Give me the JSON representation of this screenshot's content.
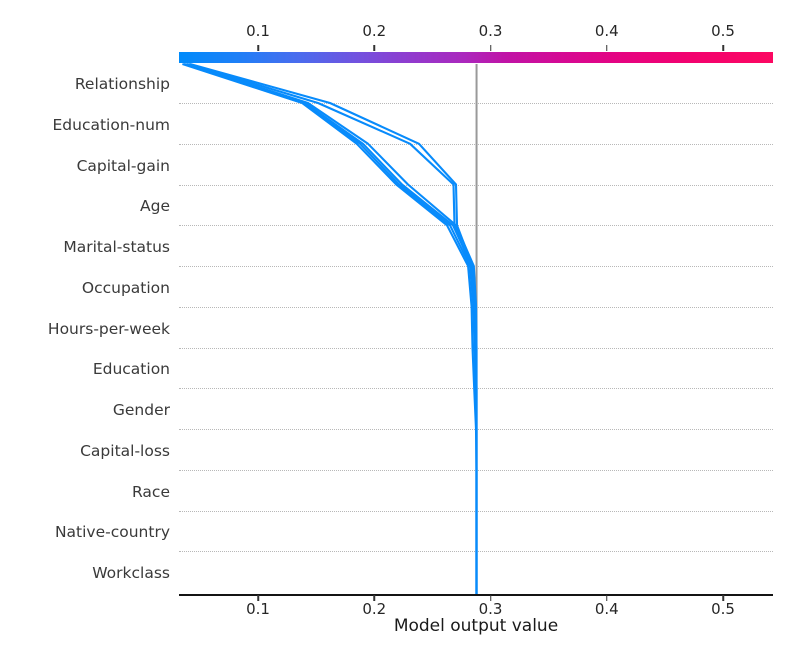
{
  "chart_data": {
    "type": "line",
    "subtype": "shap-decision-plot",
    "title": "",
    "xlabel": "Model output value",
    "ylabel": "",
    "x_range": [
      0.032,
      0.543
    ],
    "x_tick_values": [
      0.1,
      0.2,
      0.3,
      0.4,
      0.5
    ],
    "x_tick_labels": [
      "0.1",
      "0.2",
      "0.3",
      "0.4",
      "0.5"
    ],
    "top_axis_tick_labels": [
      "0.1",
      "0.2",
      "0.3",
      "0.4",
      "0.5"
    ],
    "grid": "horizontal-dotted",
    "base_value": 0.288,
    "features_top_to_bottom": [
      "Relationship",
      "Education-num",
      "Capital-gain",
      "Age",
      "Marital-status",
      "Occupation",
      "Hours-per-week",
      "Education",
      "Gender",
      "Capital-loss",
      "Race",
      "Native-country",
      "Workclass"
    ],
    "series_note": "values are model-output positions at each row boundary, listed top (final prediction) to bottom (base value)",
    "series": [
      {
        "name": "observation-1",
        "values": [
          0.035,
          0.138,
          0.185,
          0.219,
          0.2626,
          0.2807,
          0.2837,
          0.2845,
          0.286,
          0.2875,
          0.288,
          0.288,
          0.288,
          0.288
        ]
      },
      {
        "name": "observation-2",
        "values": [
          0.0362,
          0.1387,
          0.1877,
          0.2213,
          0.2652,
          0.2824,
          0.2853,
          0.2862,
          0.2872,
          0.288,
          0.288,
          0.288,
          0.288,
          0.288
        ]
      },
      {
        "name": "observation-3",
        "values": [
          0.0375,
          0.1404,
          0.1903,
          0.2239,
          0.2677,
          0.284,
          0.2866,
          0.2874,
          0.288,
          0.288,
          0.288,
          0.288,
          0.288,
          0.288
        ]
      },
      {
        "name": "observation-4",
        "values": [
          0.0388,
          0.143,
          0.1946,
          0.229,
          0.2703,
          0.2856,
          0.2876,
          0.288,
          0.288,
          0.288,
          0.288,
          0.288,
          0.288,
          0.288
        ]
      },
      {
        "name": "observation-5",
        "values": [
          0.0402,
          0.1516,
          0.2308,
          0.2682,
          0.269,
          0.283,
          0.2866,
          0.2876,
          0.288,
          0.288,
          0.288,
          0.288,
          0.288,
          0.288
        ]
      },
      {
        "name": "observation-6",
        "values": [
          0.0415,
          0.1619,
          0.2385,
          0.2703,
          0.2712,
          0.2845,
          0.2872,
          0.288,
          0.288,
          0.288,
          0.288,
          0.288,
          0.288,
          0.288
        ]
      }
    ],
    "colors": {
      "line_color": "#088bfb",
      "base_value_line_color": "#999999",
      "gridline_color": "#b8b8b8",
      "axis_line_color": "#141414",
      "tick_text_color": "#262626",
      "feature_text_color": "#3a3a3a",
      "colorbar_gradient": [
        [
          0.0,
          "#008bfb"
        ],
        [
          0.1,
          "#1f7ff7"
        ],
        [
          0.2,
          "#4a6cee"
        ],
        [
          0.3,
          "#7252df"
        ],
        [
          0.4,
          "#9438cc"
        ],
        [
          0.48,
          "#ab28bd"
        ],
        [
          0.55,
          "#c013a6"
        ],
        [
          0.65,
          "#d60993"
        ],
        [
          0.75,
          "#e60380"
        ],
        [
          0.86,
          "#f2026f"
        ],
        [
          1.0,
          "#fc0862"
        ]
      ]
    },
    "legend": "none"
  }
}
